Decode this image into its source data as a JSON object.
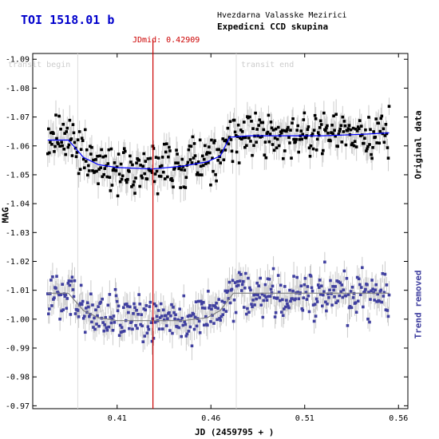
{
  "header": {
    "title": "TOI 1518.01 b",
    "observatory": "Hvezdarna Valasske Mezirici",
    "group": "Expedicni CCD skupina"
  },
  "annotations": {
    "jdmid_label": "JDmid: 0.42909",
    "transit_begin": "transit begin",
    "transit_end": "transit end"
  },
  "axes": {
    "xlabel": "JD (2459795 + )",
    "ylabel": "MAG",
    "right_label_original": "Original data",
    "right_label_trend": "Trend removed"
  },
  "colors": {
    "original": "#000000",
    "trend_removed": "#4040a0",
    "fit_original": "#0000ff",
    "fit_trend": "#808080",
    "error_bars": "#cccccc",
    "jdmid_line": "#cc0000",
    "transit_lines": "#dddddd"
  },
  "chart_data": {
    "type": "scatter",
    "xlim": [
      0.365,
      0.565
    ],
    "ylim": [
      -1.092,
      -0.969
    ],
    "y_inverted": true,
    "xticks": [
      0.41,
      0.46,
      0.51,
      0.56
    ],
    "xtick_labels": [
      "0.41",
      "0.46",
      "0.51",
      "0.56"
    ],
    "yticks": [
      -1.09,
      -1.08,
      -1.07,
      -1.06,
      -1.05,
      -1.04,
      -1.03,
      -1.02,
      -1.01,
      -1.0,
      -0.99,
      -0.98,
      -0.97
    ],
    "ytick_labels": [
      "-1.09",
      "-1.08",
      "-1.07",
      "-1.06",
      "-1.05",
      "-1.04",
      "-1.03",
      "-1.02",
      "-1.01",
      "-1.00",
      "-0.99",
      "-0.98",
      "-0.97"
    ],
    "jd_mid": 0.42909,
    "transit_begin": 0.389,
    "transit_end": 0.4735,
    "data_range": [
      0.373,
      0.555
    ],
    "series": [
      {
        "name": "Original data",
        "baseline": -1.0625,
        "depth": 0.0095,
        "model": [
          [
            0.373,
            -1.062
          ],
          [
            0.384,
            -1.062
          ],
          [
            0.392,
            -1.056
          ],
          [
            0.4,
            -1.0535
          ],
          [
            0.41,
            -1.0525
          ],
          [
            0.429,
            -1.052
          ],
          [
            0.445,
            -1.053
          ],
          [
            0.458,
            -1.0545
          ],
          [
            0.465,
            -1.0565
          ],
          [
            0.47,
            -1.063
          ],
          [
            0.48,
            -1.0635
          ],
          [
            0.5,
            -1.0635
          ],
          [
            0.52,
            -1.0635
          ],
          [
            0.54,
            -1.064
          ],
          [
            0.555,
            -1.0645
          ]
        ],
        "scatter_sigma": 0.0055
      },
      {
        "name": "Trend removed",
        "baseline": -1.009,
        "depth": 0.0095,
        "model": [
          [
            0.373,
            -1.009
          ],
          [
            0.384,
            -1.009
          ],
          [
            0.392,
            -1.003
          ],
          [
            0.4,
            -1.0005
          ],
          [
            0.41,
            -0.9995
          ],
          [
            0.429,
            -0.9995
          ],
          [
            0.445,
            -0.9995
          ],
          [
            0.458,
            -1.0005
          ],
          [
            0.465,
            -1.003
          ],
          [
            0.472,
            -1.009
          ],
          [
            0.5,
            -1.009
          ],
          [
            0.53,
            -1.009
          ],
          [
            0.555,
            -1.009
          ]
        ],
        "scatter_sigma": 0.0055
      }
    ]
  }
}
